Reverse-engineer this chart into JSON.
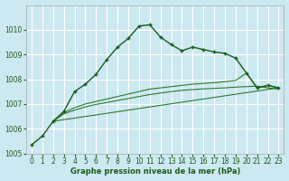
{
  "title": "Graphe pression niveau de la mer (hPa)",
  "background_color": "#cce8f0",
  "grid_color": "#ffffff",
  "line_color_main": "#1a5c1a",
  "line_color_secondary": "#2d7a2d",
  "xlim": [
    -0.5,
    23.5
  ],
  "ylim": [
    1005,
    1011
  ],
  "yticks": [
    1005,
    1006,
    1007,
    1008,
    1009,
    1010
  ],
  "xticks": [
    0,
    1,
    2,
    3,
    4,
    5,
    6,
    7,
    8,
    9,
    10,
    11,
    12,
    13,
    14,
    15,
    16,
    17,
    18,
    19,
    20,
    21,
    22,
    23
  ],
  "series1_x": [
    0,
    1,
    2,
    3,
    4,
    5,
    6,
    7,
    8,
    9,
    10,
    11,
    12,
    13,
    14,
    15,
    16,
    17,
    18,
    19,
    20,
    21,
    22,
    23
  ],
  "series1_y": [
    1005.35,
    1005.7,
    1006.3,
    1006.7,
    1007.5,
    1007.8,
    1008.2,
    1008.8,
    1009.3,
    1009.65,
    1010.15,
    1010.2,
    1009.7,
    1009.4,
    1009.15,
    1009.3,
    1009.2,
    1009.1,
    1009.05,
    1008.85,
    1008.25,
    1007.65,
    1007.75,
    1007.65
  ],
  "series2_x": [
    2,
    3,
    4,
    5,
    6,
    7,
    8,
    9,
    10,
    11,
    12,
    13,
    14,
    15,
    16,
    17,
    18,
    19,
    20,
    21,
    22,
    23
  ],
  "series2_y": [
    1006.3,
    1006.65,
    1006.85,
    1007.0,
    1007.1,
    1007.2,
    1007.3,
    1007.4,
    1007.5,
    1007.6,
    1007.65,
    1007.7,
    1007.75,
    1007.8,
    1007.83,
    1007.86,
    1007.9,
    1007.95,
    1008.25,
    1007.65,
    1007.75,
    1007.65
  ],
  "series3_x": [
    2,
    3,
    4,
    5,
    6,
    7,
    8,
    9,
    10,
    11,
    12,
    13,
    14,
    15,
    16,
    17,
    18,
    19,
    20,
    21,
    22,
    23
  ],
  "series3_y": [
    1006.3,
    1006.6,
    1006.75,
    1006.88,
    1006.98,
    1007.06,
    1007.14,
    1007.22,
    1007.3,
    1007.38,
    1007.44,
    1007.5,
    1007.55,
    1007.58,
    1007.61,
    1007.63,
    1007.65,
    1007.68,
    1007.7,
    1007.72,
    1007.65,
    1007.6
  ],
  "series4_x": [
    2,
    23
  ],
  "series4_y": [
    1006.3,
    1007.65
  ]
}
